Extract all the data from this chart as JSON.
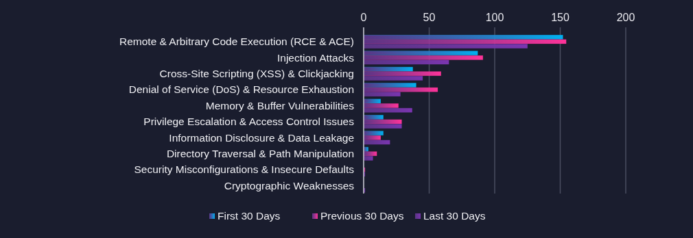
{
  "chart_data": {
    "type": "bar",
    "orientation": "horizontal",
    "categories": [
      "Remote & Arbitrary Code Execution (RCE & ACE)",
      "Injection Attacks",
      "Cross-Site Scripting (XSS) & Clickjacking",
      "Denial of Service (DoS) & Resource Exhaustion",
      "Memory & Buffer Vulnerabilities",
      "Privilege Escalation & Access Control Issues",
      "Information Disclosure & Data Leakage",
      "Directory Traversal & Path Manipulation",
      "Security Misconfigurations & Insecure Defaults",
      "Cryptographic Weaknesses"
    ],
    "series": [
      {
        "name": "First 30 Days",
        "color": "#00b0f0",
        "values": [
          152,
          87,
          37.5,
          40,
          13,
          15,
          15,
          3.5,
          0,
          0
        ]
      },
      {
        "name": "Previous 30 Days",
        "color": "#ff3399",
        "values": [
          154.5,
          91,
          59,
          56.5,
          26.5,
          29,
          13,
          10,
          1,
          0
        ]
      },
      {
        "name": "Last 30 Days",
        "color": "#7a35b0",
        "values": [
          125,
          65,
          45,
          28,
          37,
          29,
          20,
          7,
          1,
          1
        ]
      }
    ],
    "xlim": [
      0,
      200
    ],
    "xticks": [
      0,
      50,
      100,
      150,
      200
    ],
    "grid": "x",
    "legend": "bottom"
  }
}
